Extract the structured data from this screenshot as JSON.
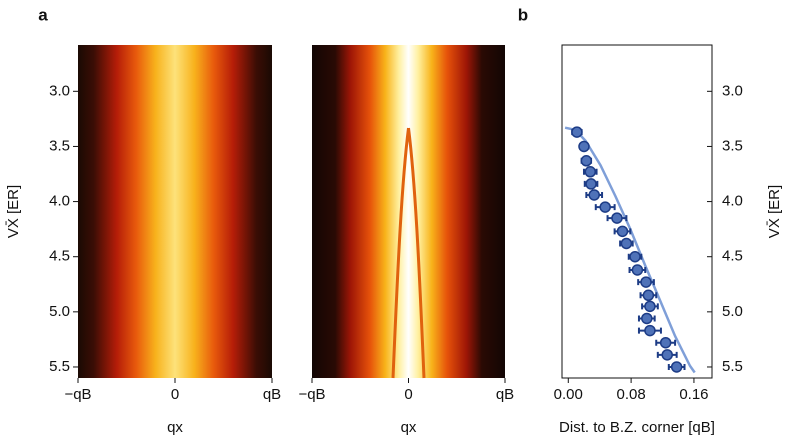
{
  "chart_data": [
    {
      "type": "heatmap",
      "panel_label": "a",
      "x_label": "qx",
      "y_label": "VX̄ [ER]",
      "xlim": [
        -1,
        1
      ],
      "xticks": [
        {
          "value": -1,
          "label": "−qB"
        },
        0,
        {
          "value": 1,
          "label": "qB"
        }
      ],
      "ylim": [
        5.6,
        2.58
      ],
      "yticks": [
        {
          "value": 3.0,
          "label": "3.0"
        },
        3.5,
        {
          "value": 4.0,
          "label": "4.0"
        },
        4.5,
        {
          "value": 5.0,
          "label": "5.0"
        },
        5.5
      ]
    },
    {
      "type": "heatmap",
      "x_label": "qx",
      "xlim": [
        -1,
        1
      ],
      "xticks": [
        {
          "value": -1,
          "label": "−qB"
        },
        0,
        {
          "value": 1,
          "label": "qB"
        }
      ]
    },
    {
      "type": "scatter",
      "panel_label": "b",
      "x_label": "Dist. to B.Z. corner [qB]",
      "y_label": "VX̄ [ER]",
      "xlim": [
        -0.008,
        0.183
      ],
      "xticks": [
        {
          "value": 0,
          "label": "0.00"
        },
        0.08,
        0.16
      ],
      "ylim": [
        5.6,
        2.58
      ],
      "yticks": [
        {
          "value": 3.0,
          "label": "3.0"
        },
        3.5,
        {
          "value": 4.0,
          "label": "4.0"
        },
        4.5,
        {
          "value": 5.0,
          "label": "5.0"
        },
        5.5
      ],
      "points": {
        "color": "#4f72b8",
        "x": [
          0.011,
          0.02,
          0.023,
          0.028,
          0.029,
          0.033,
          0.047,
          0.062,
          0.069,
          0.074,
          0.085,
          0.088,
          0.099,
          0.102,
          0.104,
          0.1,
          0.104,
          0.124,
          0.126,
          0.138
        ],
        "values": [
          3.37,
          3.5,
          3.63,
          3.73,
          3.84,
          3.94,
          4.05,
          4.15,
          4.27,
          4.38,
          4.5,
          4.62,
          4.73,
          4.85,
          4.95,
          5.06,
          5.17,
          5.28,
          5.39,
          5.5
        ],
        "xerr": [
          0.006,
          0.005,
          0.006,
          0.008,
          0.008,
          0.01,
          0.012,
          0.012,
          0.01,
          0.008,
          0.008,
          0.01,
          0.01,
          0.01,
          0.01,
          0.01,
          0.014,
          0.012,
          0.012,
          0.01
        ]
      },
      "curve": {
        "color": "#7f9fd8",
        "x": [
          -0.004,
          0.009,
          0.022,
          0.041,
          0.06,
          0.079,
          0.098,
          0.117,
          0.136,
          0.155,
          0.161
        ],
        "values": [
          3.33,
          3.35,
          3.45,
          3.67,
          3.95,
          4.25,
          4.58,
          4.9,
          5.22,
          5.49,
          5.55
        ]
      }
    }
  ]
}
